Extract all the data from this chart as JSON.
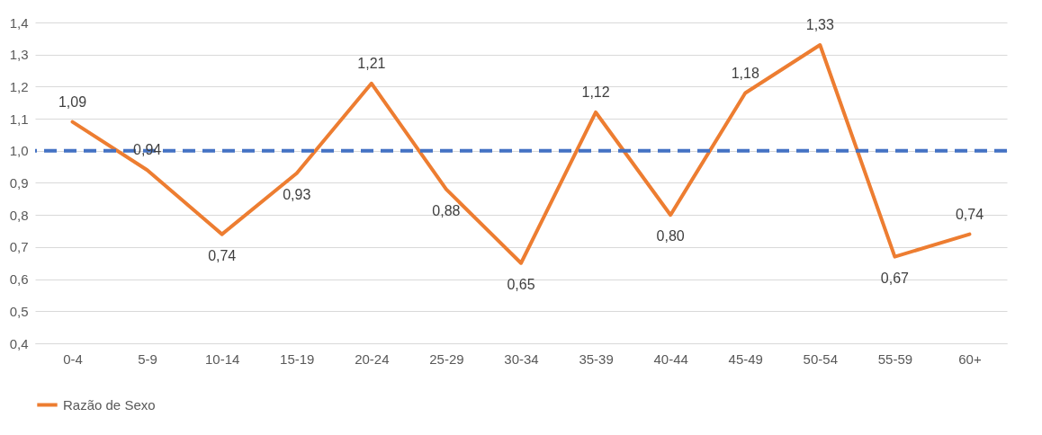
{
  "chart_data": {
    "type": "line",
    "categories": [
      "0-4",
      "5-9",
      "10-14",
      "15-19",
      "20-24",
      "25-29",
      "30-34",
      "35-39",
      "40-44",
      "45-49",
      "50-54",
      "55-59",
      "60+"
    ],
    "series": [
      {
        "name": "Razão de Sexo",
        "color": "#ed7d31",
        "values": [
          1.09,
          0.94,
          0.74,
          0.93,
          1.21,
          0.88,
          0.65,
          1.12,
          0.8,
          1.18,
          1.33,
          0.67,
          0.74
        ],
        "value_labels": [
          "1,09",
          "0,94",
          "0,74",
          "0,93",
          "1,21",
          "0,88",
          "0,65",
          "1,12",
          "0,80",
          "1,18",
          "1,33",
          "0,67",
          "0,74"
        ]
      }
    ],
    "ylim": [
      0.4,
      1.4
    ],
    "yticks": [
      {
        "value": 0.4,
        "label": "0,4"
      },
      {
        "value": 0.5,
        "label": "0,5"
      },
      {
        "value": 0.6,
        "label": "0,6"
      },
      {
        "value": 0.7,
        "label": "0,7"
      },
      {
        "value": 0.8,
        "label": "0,8"
      },
      {
        "value": 0.9,
        "label": "0,9"
      },
      {
        "value": 1.0,
        "label": "1,0"
      },
      {
        "value": 1.1,
        "label": "1,1"
      },
      {
        "value": 1.2,
        "label": "1,2"
      },
      {
        "value": 1.3,
        "label": "1,3"
      },
      {
        "value": 1.4,
        "label": "1,4"
      }
    ],
    "ref_lines": [
      {
        "axis": "y",
        "value": 1.0,
        "color": "#4472c4",
        "line_style": "dashed"
      }
    ],
    "grid": "y",
    "legend": "bottom",
    "marker": "none",
    "line_style": "solid"
  }
}
